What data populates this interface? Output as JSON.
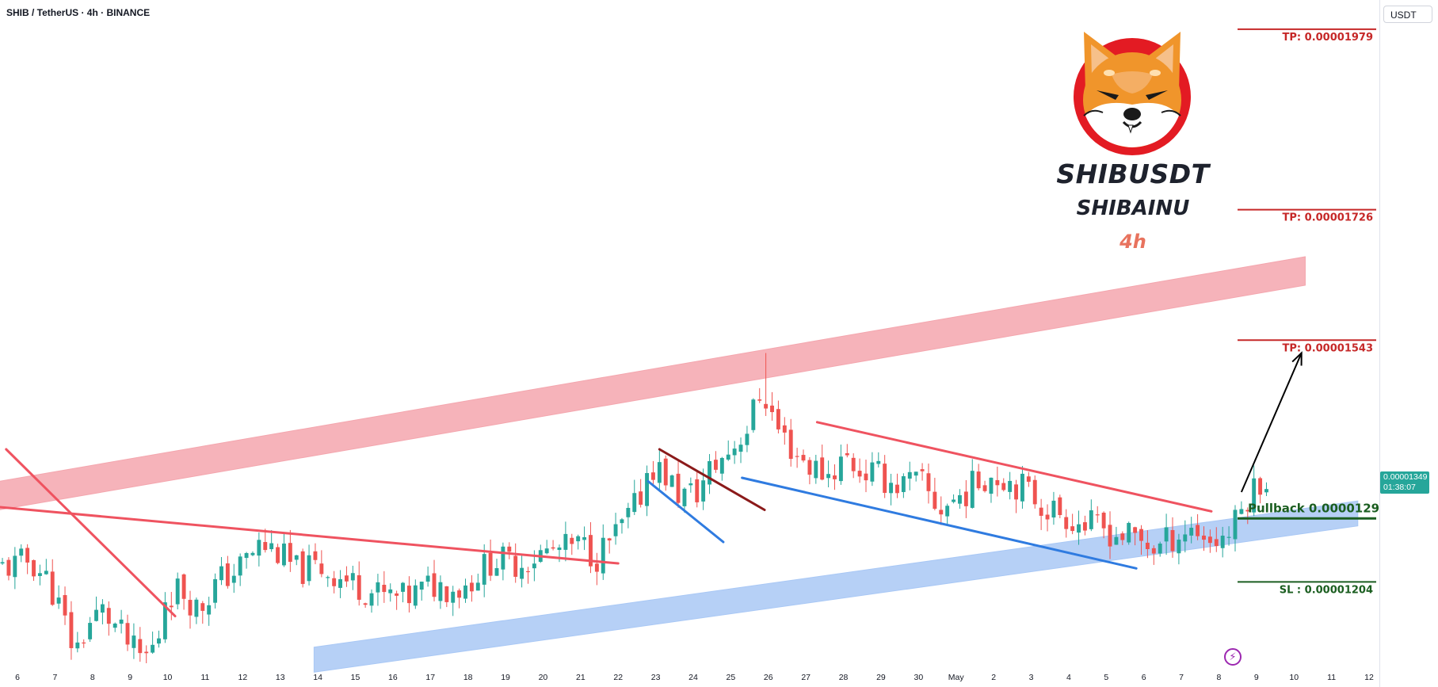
{
  "header": {
    "symbol_line": "SHIB / TetherUS · 4h · BINANCE"
  },
  "branding": {
    "title": "SHIBUSDT",
    "subtitle": "SHIBAINU",
    "timeframe": "4h",
    "logo_icon": "shiba-inu-logo"
  },
  "price_scale": {
    "currency": "USDT",
    "current_price": "0.00001349",
    "countdown": "01:38:07",
    "up_color": "#26a69a",
    "down_color": "#ef5350"
  },
  "icons": {
    "flash": "lightning-icon"
  },
  "levels": [
    {
      "key": "tp3",
      "label": "TP: 0.00001979",
      "price": 1.979e-05,
      "color": "#c62828"
    },
    {
      "key": "tp2",
      "label": "TP: 0.00001726",
      "price": 1.726e-05,
      "color": "#c62828"
    },
    {
      "key": "tp1",
      "label": "TP: 0.00001543",
      "price": 1.543e-05,
      "color": "#c62828"
    },
    {
      "key": "pullback",
      "label": "Pullback 0.00001293",
      "price": 1.293e-05,
      "color": "#1b5e20"
    },
    {
      "key": "sl",
      "label": "SL : 0.00001204",
      "price": 1.204e-05,
      "color": "#1b5e20"
    }
  ],
  "chart_data": {
    "type": "candlestick",
    "title": "SHIB / TetherUS · 4h · BINANCE",
    "ylim": [
      1.08e-05,
      1.99e-05
    ],
    "y_ticks": [
      "0.00001950",
      "0.00001900",
      "0.00001850",
      "0.00001800",
      "0.00001750",
      "0.00001700",
      "0.00001650",
      "0.00001600",
      "0.00001550",
      "0.00001500",
      "0.00001450",
      "0.00001400",
      "0.00001350",
      "0.00001300",
      "0.00001250",
      "0.00001200",
      "0.00001150",
      "0.00001100"
    ],
    "x_ticks": [
      "6",
      "7",
      "8",
      "9",
      "10",
      "11",
      "12",
      "13",
      "14",
      "15",
      "16",
      "17",
      "18",
      "19",
      "20",
      "21",
      "22",
      "23",
      "24",
      "25",
      "26",
      "27",
      "28",
      "29",
      "30",
      "May",
      "2",
      "3",
      "4",
      "5",
      "6",
      "7",
      "8",
      "9",
      "10",
      "11",
      "12"
    ],
    "x_range_days": [
      0,
      36.5
    ],
    "candles_per_day": 6,
    "anchors": [
      [
        0.0,
        1.225e-05
      ],
      [
        0.5,
        1.235e-05
      ],
      [
        1.0,
        1.205e-05
      ],
      [
        1.3,
        1.165e-05
      ],
      [
        1.7,
        1.105e-05
      ],
      [
        2.0,
        1.14e-05
      ],
      [
        2.4,
        1.165e-05
      ],
      [
        2.8,
        1.14e-05
      ],
      [
        3.2,
        1.11e-05
      ],
      [
        3.5,
        1.095e-05
      ],
      [
        3.9,
        1.12e-05
      ],
      [
        4.1,
        1.185e-05
      ],
      [
        4.5,
        1.195e-05
      ],
      [
        5.0,
        1.165e-05
      ],
      [
        5.5,
        1.205e-05
      ],
      [
        6.0,
        1.22e-05
      ],
      [
        6.6,
        1.255e-05
      ],
      [
        7.0,
        1.25e-05
      ],
      [
        7.6,
        1.22e-05
      ],
      [
        8.2,
        1.225e-05
      ],
      [
        9.0,
        1.205e-05
      ],
      [
        9.8,
        1.185e-05
      ],
      [
        10.5,
        1.18e-05
      ],
      [
        11.2,
        1.2e-05
      ],
      [
        12.0,
        1.195e-05
      ],
      [
        12.8,
        1.235e-05
      ],
      [
        13.5,
        1.23e-05
      ],
      [
        14.2,
        1.245e-05
      ],
      [
        15.2,
        1.255e-05
      ],
      [
        15.6,
        1.24e-05
      ],
      [
        16.2,
        1.275e-05
      ],
      [
        16.7,
        1.315e-05
      ],
      [
        17.0,
        1.37e-05
      ],
      [
        17.4,
        1.355e-05
      ],
      [
        17.8,
        1.325e-05
      ],
      [
        18.3,
        1.33e-05
      ],
      [
        18.6,
        1.36e-05
      ],
      [
        19.0,
        1.38e-05
      ],
      [
        19.6,
        1.42e-05
      ],
      [
        20.0,
        1.475e-05
      ],
      [
        20.4,
        1.42e-05
      ],
      [
        20.8,
        1.39e-05
      ],
      [
        21.3,
        1.365e-05
      ],
      [
        21.8,
        1.355e-05
      ],
      [
        22.2,
        1.38e-05
      ],
      [
        22.6,
        1.36e-05
      ],
      [
        23.0,
        1.355e-05
      ],
      [
        23.6,
        1.34e-05
      ],
      [
        24.2,
        1.345e-05
      ],
      [
        24.7,
        1.305e-05
      ],
      [
        25.3,
        1.325e-05
      ],
      [
        26.0,
        1.355e-05
      ],
      [
        26.5,
        1.35e-05
      ],
      [
        27.0,
        1.335e-05
      ],
      [
        27.5,
        1.31e-05
      ],
      [
        28.0,
        1.3e-05
      ],
      [
        28.5,
        1.285e-05
      ],
      [
        29.0,
        1.28e-05
      ],
      [
        29.5,
        1.27e-05
      ],
      [
        30.0,
        1.265e-05
      ],
      [
        30.5,
        1.25e-05
      ],
      [
        31.0,
        1.27e-05
      ],
      [
        31.5,
        1.28e-05
      ],
      [
        32.0,
        1.26e-05
      ],
      [
        32.5,
        1.275e-05
      ],
      [
        32.9,
        1.32e-05
      ],
      [
        33.3,
        1.349e-05
      ]
    ],
    "spike_highs": [
      [
        20.0,
        1.525e-05
      ]
    ],
    "overlays": {
      "upper_channel_band": {
        "from": [
          -0.5,
          1.325e-05
        ],
        "to": [
          34.3,
          1.64e-05
        ],
        "width": 4e-07,
        "color": "#f4a6ae"
      },
      "lower_channel_band": {
        "from": [
          7.9,
          1.095e-05
        ],
        "to": [
          35.7,
          1.3e-05
        ],
        "width": 3.5e-07,
        "color": "#a9c8f5"
      },
      "descending_line_1": {
        "from": [
          -0.3,
          1.39e-05
        ],
        "to": [
          4.2,
          1.156e-05
        ],
        "color": "#ef5360"
      },
      "descending_line_2": {
        "from": [
          -0.5,
          1.309e-05
        ],
        "to": [
          16.0,
          1.23e-05
        ],
        "color": "#ef5360"
      },
      "descending_line_3": {
        "from": [
          21.3,
          1.428e-05
        ],
        "to": [
          31.8,
          1.303e-05
        ],
        "color": "#ef5360"
      },
      "flag_line_red": {
        "from": [
          17.1,
          1.39e-05
        ],
        "to": [
          19.9,
          1.305e-05
        ],
        "color": "#8b1a1a"
      },
      "flag_line_blue": {
        "from": [
          16.8,
          1.345e-05
        ],
        "to": [
          18.8,
          1.26e-05
        ],
        "color": "#2f7be0"
      },
      "support_line_blue": {
        "from": [
          19.3,
          1.35e-05
        ],
        "to": [
          29.8,
          1.223e-05
        ],
        "color": "#2f7be0"
      },
      "target_arrow": {
        "from": [
          32.6,
          1.33e-05
        ],
        "to": [
          34.2,
          1.525e-05
        ],
        "color": "#000000"
      }
    }
  }
}
